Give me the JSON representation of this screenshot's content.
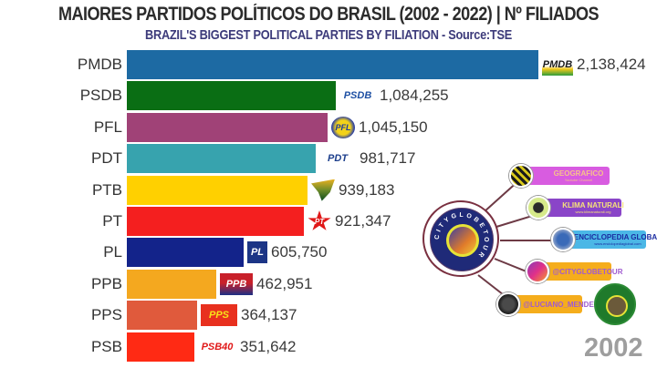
{
  "header": {
    "title": "MAIORES PARTIDOS POLÍTICOS DO BRASIL (2002 - 2022) | Nº FILIADOS",
    "subtitle": "BRAZIL'S BIGGEST POLITICAL PARTIES BY FILIATION - Source:TSE"
  },
  "year": "2002",
  "bars": [
    {
      "party": "PMDB",
      "value": 2138424,
      "value_label": "2,138,424",
      "color": "#1d6aa3",
      "logo_text": "PMDB",
      "logo_color": "#1a1a1a",
      "logo_bg": "linear-gradient(180deg,#ffffff 55%,#f2c81a 70%,#2e9c3c 100%)"
    },
    {
      "party": "PSDB",
      "value": 1084255,
      "value_label": "1,084,255",
      "color": "#0a6e14",
      "logo_text": "PSDB",
      "logo_color": "#1d4fa3",
      "logo_bg": "#ffffff"
    },
    {
      "party": "PFL",
      "value": 1045150,
      "value_label": "1,045,150",
      "color": "#a04277",
      "logo_text": "PFL",
      "logo_color": "#1d3a9c",
      "logo_bg": "radial-gradient(circle,#f3d21a 45%,#2a3fa6 70%)"
    },
    {
      "party": "PDT",
      "value": 981717,
      "value_label": "981,717",
      "color": "#37a3ae",
      "logo_text": "PDT",
      "logo_color": "#1d3f8c",
      "logo_bg": "#ffffff"
    },
    {
      "party": "PTB",
      "value": 939183,
      "value_label": "939,183",
      "color": "#ffd000",
      "logo_text": "",
      "logo_color": "#000000",
      "logo_bg": "linear-gradient(180deg,#e8b020 0%,#6b8a2a 50%,#0a4a1e 100%)"
    },
    {
      "party": "PT",
      "value": 921347,
      "value_label": "921,347",
      "color": "#f41f1f",
      "logo_text": "PT",
      "logo_color": "#ffffff",
      "logo_bg": "#e01818"
    },
    {
      "party": "PL",
      "value": 605750,
      "value_label": "605,750",
      "color": "#13238a",
      "logo_text": "PL",
      "logo_color": "#ffffff",
      "logo_bg": "#1c3586"
    },
    {
      "party": "PPB",
      "value": 462951,
      "value_label": "462,951",
      "color": "#f4a81f",
      "logo_text": "PPB",
      "logo_color": "#ffffff",
      "logo_bg": "linear-gradient(180deg,#c8202a 0%,#c8202a 45%,#1c2f86 100%)"
    },
    {
      "party": "PPS",
      "value": 364137,
      "value_label": "364,137",
      "color": "#e05a3c",
      "logo_text": "PPS",
      "logo_color": "#f7e21a",
      "logo_bg": "#e8301e"
    },
    {
      "party": "PSB",
      "value": 351642,
      "value_label": "351,642",
      "color": "#ff2a14",
      "logo_text": "PSB40",
      "logo_color": "#e01818",
      "logo_bg": "#ffffff"
    }
  ],
  "social": {
    "hub_text": "CITYGLOBETOUR",
    "items": [
      {
        "label": "GEOGRAFICO",
        "sub": "Youtube Channel",
        "bg": "#d85ce0",
        "fg": "#f7c28a",
        "icon": "stripe-globe-icon"
      },
      {
        "label": "KLIMA NATURALI",
        "sub": "www.klimanaturali.org",
        "bg": "#8a45c8",
        "fg": "#f5e27a",
        "icon": "globe-icon"
      },
      {
        "label": "ENCICLOPEDIA GLOBAL",
        "sub": "www.enciclopediaglobal.com",
        "bg": "#4bb7e6",
        "fg": "#1a2aa0",
        "icon": "globe-blue-icon"
      },
      {
        "label": "@CITYGLOBETOUR",
        "sub": "",
        "bg": "#f5ad1c",
        "fg": "#a05ad0",
        "icon": "instagram-icon"
      },
      {
        "label": "@LUCIANO_MENDE",
        "sub": "",
        "bg": "#f5ad1c",
        "fg": "#a05ad0",
        "icon": "instagram-dark-icon"
      }
    ]
  },
  "chart_data": {
    "type": "bar",
    "orientation": "horizontal",
    "title": "MAIORES PARTIDOS POLÍTICOS DO BRASIL (2002 - 2022) | Nº FILIADOS",
    "subtitle": "BRAZIL'S BIGGEST POLITICAL PARTIES BY FILIATION - Source:TSE",
    "frame_label": "2002",
    "categories": [
      "PMDB",
      "PSDB",
      "PFL",
      "PDT",
      "PTB",
      "PT",
      "PL",
      "PPB",
      "PPS",
      "PSB"
    ],
    "values": [
      2138424,
      1084255,
      1045150,
      981717,
      939183,
      921347,
      605750,
      462951,
      364137,
      351642
    ],
    "xlabel": "",
    "ylabel": "",
    "grid": false,
    "legend": "none"
  }
}
